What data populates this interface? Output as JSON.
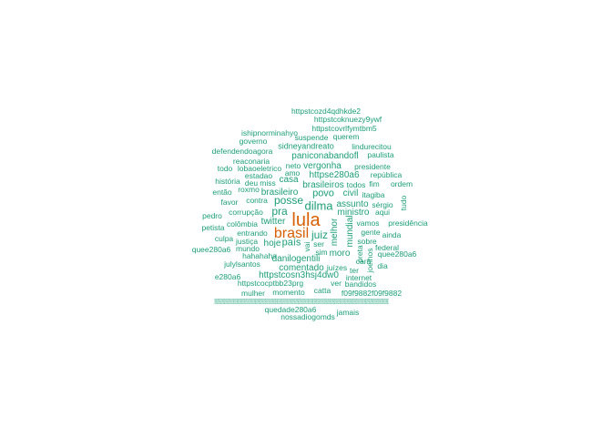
{
  "colors": {
    "primary": "#1b9e77",
    "highlight": "#d95f02"
  },
  "words": [
    {
      "text": "httpstcozd4qdhkde2"
    },
    {
      "text": "httpstcoknuezy9ywf"
    },
    {
      "text": "httpstcovrlfymtbm5"
    },
    {
      "text": "ishipnorminahyo"
    },
    {
      "text": "suspende"
    },
    {
      "text": "querem"
    },
    {
      "text": "governo"
    },
    {
      "text": "sidneyandreato"
    },
    {
      "text": "lindurecitou"
    },
    {
      "text": "defendendoagora"
    },
    {
      "text": "paulista"
    },
    {
      "text": "paniconabandofl"
    },
    {
      "text": "reaconaria"
    },
    {
      "text": "todo"
    },
    {
      "text": "lobaoeletrico"
    },
    {
      "text": "neto"
    },
    {
      "text": "vergonha"
    },
    {
      "text": "presidente"
    },
    {
      "text": "amo"
    },
    {
      "text": "estadao"
    },
    {
      "text": "httpse280a6"
    },
    {
      "text": "república"
    },
    {
      "text": "história"
    },
    {
      "text": "deu"
    },
    {
      "text": "miss"
    },
    {
      "text": "casa"
    },
    {
      "text": "brasileiros"
    },
    {
      "text": "todos"
    },
    {
      "text": "fim"
    },
    {
      "text": "ordem"
    },
    {
      "text": "então"
    },
    {
      "text": "roxmo"
    },
    {
      "text": "brasileiro"
    },
    {
      "text": "povo"
    },
    {
      "text": "civil"
    },
    {
      "text": "itagiba"
    },
    {
      "text": "favor"
    },
    {
      "text": "contra"
    },
    {
      "text": "posse"
    },
    {
      "text": "dilma"
    },
    {
      "text": "assunto"
    },
    {
      "text": "sérgio"
    },
    {
      "text": "tudo"
    },
    {
      "text": "pedro"
    },
    {
      "text": "corrupção"
    },
    {
      "text": "pra"
    },
    {
      "text": "ministro"
    },
    {
      "text": "aqui"
    },
    {
      "text": "lula"
    },
    {
      "text": "colômbia"
    },
    {
      "text": "twitter"
    },
    {
      "text": "vamos"
    },
    {
      "text": "presidência"
    },
    {
      "text": "petista"
    },
    {
      "text": "entrando"
    },
    {
      "text": "brasil"
    },
    {
      "text": "juiz"
    },
    {
      "text": "gente"
    },
    {
      "text": "ainda"
    },
    {
      "text": "culpa"
    },
    {
      "text": "justiça"
    },
    {
      "text": "hoje"
    },
    {
      "text": "país"
    },
    {
      "text": "melhor"
    },
    {
      "text": "mundial"
    },
    {
      "text": "sobre"
    },
    {
      "text": "quee280a6"
    },
    {
      "text": "mundo"
    },
    {
      "text": "vai"
    },
    {
      "text": "ser"
    },
    {
      "text": "federal"
    },
    {
      "text": "hahahaha"
    },
    {
      "text": "sim"
    },
    {
      "text": "moro"
    },
    {
      "text": "preta"
    },
    {
      "text": "joelhos"
    },
    {
      "text": "quee280a6"
    },
    {
      "text": "danilogentili"
    },
    {
      "text": "cara"
    },
    {
      "text": "julylsantos"
    },
    {
      "text": "comentado"
    },
    {
      "text": "juízes"
    },
    {
      "text": "dia"
    },
    {
      "text": "ter"
    },
    {
      "text": "e280a6"
    },
    {
      "text": "httpstcosn3hsj4dw0"
    },
    {
      "text": "internet"
    },
    {
      "text": "httpstcocptbb23prg"
    },
    {
      "text": "ver"
    },
    {
      "text": "bandidos"
    },
    {
      "text": "mulher"
    },
    {
      "text": "momento"
    },
    {
      "text": "catta"
    },
    {
      "text": "f09f9882f09f9882"
    },
    {
      "text": "f09f9882f09f9882f09f9882f09f9882f09f9882f09f9882f09f9882f09f9882f09f9882f09f9882f09f9882f09f9882f09f9882f09f9882f09f9882f09f9882f09f9882f09f9882f09f9882f09f9882f09f9882f09f9882f09f9882f09f9882f09f9882f09f9882f09f9882f09f9882f09f9882f09f9882f09f9882f09f9882f09f9882f09f9882f09f9882f09f9882f09f9882f09f9882f09f9882f09f9882f09f9882f09f9882f09f9882f09f9882f09f9882f09f9882f09f9882f09f9882f09f9882"
    },
    {
      "text": "quedade280a6"
    },
    {
      "text": "jamais"
    },
    {
      "text": "nossadiogomds"
    }
  ]
}
